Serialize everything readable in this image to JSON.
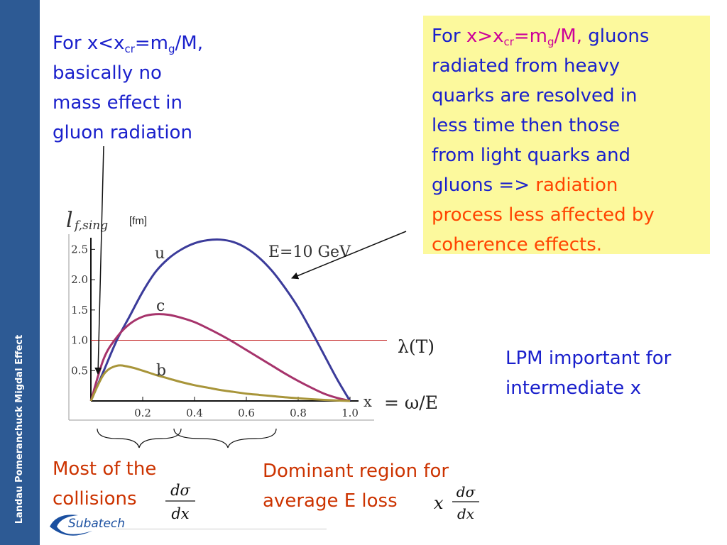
{
  "sidebar": {
    "label": "Landau Pomeranchuck Migdal Effect"
  },
  "note_left": {
    "prefix": "For x<x",
    "cr": "cr",
    "mid": "=m",
    "g": "g",
    "suffix": "/M,",
    "line2": "basically no",
    "line3": "mass effect in",
    "line4": "gluon radiation"
  },
  "note_box": {
    "prefix": "For ",
    "x": "x>x",
    "cr": "cr",
    "mid": "=m",
    "g": "g",
    "suffix": "/M,",
    "rest1": " gluons",
    "line2": "radiated from  heavy",
    "line3": "quarks are resolved in",
    "line4": "less time then those",
    "line5": "from light quarks and",
    "line6a": "gluons => ",
    "line6b": "radiation",
    "line7": "process less affected by",
    "line8": "coherence effects."
  },
  "lpm_note": {
    "line1": "LPM important for",
    "line2": "intermediate x"
  },
  "most_note": {
    "line1": "Most of the",
    "line2": "collisions",
    "formula_num": "dσ",
    "formula_den": "dx"
  },
  "dominant_note": {
    "line1": "Dominant region for",
    "line2": "average E loss",
    "formula_x": "x",
    "formula_num": "dσ",
    "formula_den": "dx"
  },
  "logo": {
    "text": "Subatech"
  },
  "chart_data": {
    "type": "line",
    "ylabel": "l",
    "ylabel_sub": "f,sing",
    "yunit": "[fm]",
    "xlabel": "x",
    "xlabel_eq": "= ω/E",
    "energy_label": "E=10 GeV",
    "xlim": [
      0,
      1.0
    ],
    "ylim": [
      0,
      2.75
    ],
    "xticks": [
      "0.2",
      "0.4",
      "0.6",
      "0.8",
      "1.0"
    ],
    "yticks": [
      "0.5",
      "1.0",
      "1.5",
      "2.0",
      "2.5"
    ],
    "reference_line": {
      "label": "λ(T)",
      "y": 1.0
    },
    "colors": {
      "u": "#3b3b9a",
      "c": "#a6336b",
      "b": "#a8953a",
      "ref": "#c62828"
    },
    "series": [
      {
        "name": "u",
        "x": [
          0,
          0.05,
          0.1,
          0.15,
          0.2,
          0.25,
          0.3,
          0.35,
          0.4,
          0.45,
          0.5,
          0.55,
          0.6,
          0.65,
          0.7,
          0.75,
          0.8,
          0.85,
          0.9,
          0.95,
          1.0
        ],
        "y": [
          0,
          0.5,
          1.0,
          1.4,
          1.8,
          2.13,
          2.35,
          2.5,
          2.6,
          2.65,
          2.66,
          2.62,
          2.52,
          2.36,
          2.14,
          1.86,
          1.54,
          1.16,
          0.76,
          0.36,
          0
        ]
      },
      {
        "name": "c",
        "x": [
          0,
          0.05,
          0.1,
          0.15,
          0.2,
          0.25,
          0.3,
          0.35,
          0.4,
          0.45,
          0.5,
          0.55,
          0.6,
          0.65,
          0.7,
          0.75,
          0.8,
          0.85,
          0.9,
          0.95,
          1.0
        ],
        "y": [
          0,
          0.7,
          1.05,
          1.27,
          1.39,
          1.43,
          1.42,
          1.37,
          1.3,
          1.2,
          1.09,
          0.97,
          0.84,
          0.71,
          0.58,
          0.45,
          0.33,
          0.22,
          0.12,
          0.05,
          0
        ]
      },
      {
        "name": "b",
        "x": [
          0,
          0.05,
          0.1,
          0.15,
          0.2,
          0.25,
          0.3,
          0.35,
          0.4,
          0.45,
          0.5,
          0.55,
          0.6,
          0.65,
          0.7,
          0.75,
          0.8,
          0.85,
          0.9,
          0.95,
          1.0
        ],
        "y": [
          0,
          0.44,
          0.58,
          0.56,
          0.5,
          0.43,
          0.37,
          0.31,
          0.26,
          0.22,
          0.18,
          0.15,
          0.12,
          0.1,
          0.08,
          0.06,
          0.045,
          0.03,
          0.018,
          0.008,
          0
        ]
      }
    ]
  }
}
